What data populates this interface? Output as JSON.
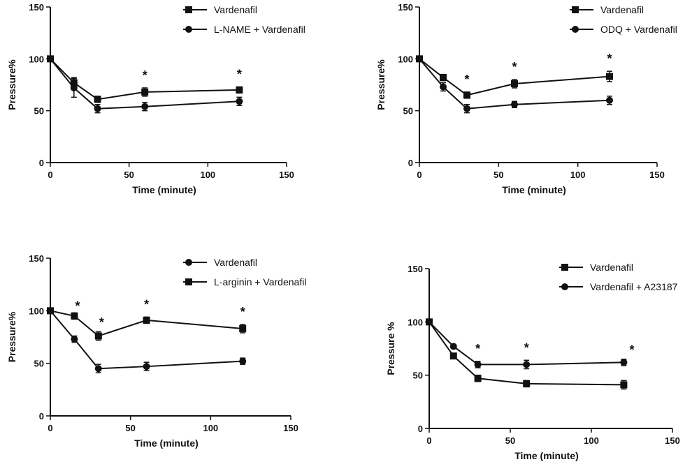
{
  "chart_data": [
    {
      "type": "line",
      "xlabel": "Time (minute)",
      "ylabel": "Pressure%",
      "xlim": [
        0,
        150
      ],
      "ylim": [
        0,
        150
      ],
      "xticks": [
        "0",
        "50",
        "100",
        "150"
      ],
      "yticks": [
        "0",
        "50",
        "100",
        "150"
      ],
      "legend_position": "top-right",
      "x": [
        0,
        15,
        30,
        60,
        120
      ],
      "series": [
        {
          "name": "Vardenafil",
          "marker": "square",
          "values": [
            100,
            77,
            61,
            68,
            70
          ],
          "err": [
            0,
            5,
            3,
            4,
            3
          ]
        },
        {
          "name": "L-NAME + Vardenafil",
          "marker": "circle",
          "values": [
            100,
            72,
            52,
            54,
            59
          ],
          "err": [
            0,
            9,
            4,
            4,
            4
          ]
        }
      ],
      "significance": [
        {
          "x": 60,
          "label": "*"
        },
        {
          "x": 120,
          "label": "*"
        }
      ]
    },
    {
      "type": "line",
      "xlabel": "Time (minute)",
      "ylabel": "Pressure%",
      "xlim": [
        0,
        150
      ],
      "ylim": [
        0,
        150
      ],
      "xticks": [
        "0",
        "50",
        "100",
        "150"
      ],
      "yticks": [
        "0",
        "50",
        "100",
        "150"
      ],
      "legend_position": "top-right",
      "x": [
        0,
        15,
        30,
        60,
        120
      ],
      "series": [
        {
          "name": "Vardenafil",
          "marker": "square",
          "values": [
            100,
            82,
            65,
            76,
            83
          ],
          "err": [
            0,
            3,
            3,
            4,
            5
          ]
        },
        {
          "name": "ODQ + Vardenafil",
          "marker": "circle",
          "values": [
            100,
            73,
            52,
            56,
            60
          ],
          "err": [
            0,
            4,
            4,
            3,
            4
          ]
        }
      ],
      "significance": [
        {
          "x": 30,
          "label": "*"
        },
        {
          "x": 60,
          "label": "*"
        },
        {
          "x": 120,
          "label": "*"
        }
      ]
    },
    {
      "type": "line",
      "xlabel": "Time (minute)",
      "ylabel": "Pressure%",
      "xlim": [
        0,
        150
      ],
      "ylim": [
        0,
        150
      ],
      "xticks": [
        "0",
        "50",
        "100",
        "150"
      ],
      "yticks": [
        "0",
        "50",
        "100",
        "150"
      ],
      "legend_position": "top-right",
      "x": [
        0,
        15,
        30,
        60,
        120
      ],
      "series": [
        {
          "name": "Vardenafil",
          "marker": "circle",
          "values": [
            100,
            73,
            45,
            47,
            52
          ],
          "err": [
            0,
            3,
            4,
            4,
            3
          ]
        },
        {
          "name": "L-arginin + Vardenafil",
          "marker": "square",
          "values": [
            100,
            95,
            76,
            91,
            83
          ],
          "err": [
            0,
            3,
            4,
            3,
            4
          ]
        }
      ],
      "significance": [
        {
          "x": 17,
          "label": "*"
        },
        {
          "x": 32,
          "label": "*"
        },
        {
          "x": 60,
          "label": "*"
        },
        {
          "x": 120,
          "label": "*"
        }
      ]
    },
    {
      "type": "line",
      "xlabel": "Time (minute)",
      "ylabel": "Pressure %",
      "xlim": [
        0,
        150
      ],
      "ylim": [
        0,
        150
      ],
      "xticks": [
        "0",
        "50",
        "100",
        "150"
      ],
      "yticks": [
        "0",
        "50",
        "100",
        "150"
      ],
      "legend_position": "top-right",
      "x": [
        0,
        15,
        30,
        60,
        120
      ],
      "series": [
        {
          "name": "Vardenafil",
          "marker": "square",
          "values": [
            100,
            68,
            47,
            42,
            41
          ],
          "err": [
            0,
            2,
            3,
            3,
            4
          ]
        },
        {
          "name": "Vardenafil + A23187",
          "marker": "circle",
          "values": [
            100,
            77,
            60,
            60,
            62
          ],
          "err": [
            0,
            2,
            3,
            4,
            3
          ]
        }
      ],
      "significance": [
        {
          "x": 30,
          "label": "*"
        },
        {
          "x": 60,
          "label": "*"
        },
        {
          "x": 125,
          "label": "*"
        }
      ]
    }
  ]
}
